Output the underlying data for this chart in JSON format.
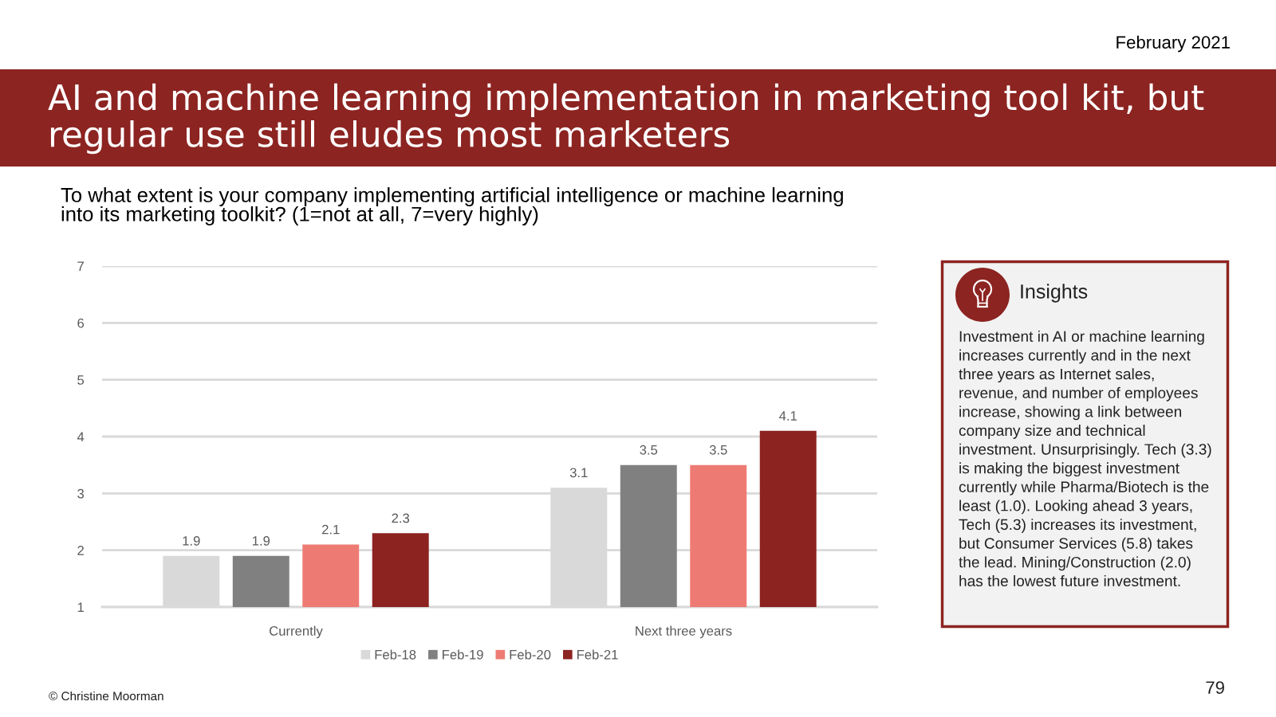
{
  "chart_data": [
    {
      "type": "bar",
      "title": "AI and machine learning implementation in marketing tool kit, but regular use still eludes most marketers",
      "subtitle": "To what extent is your company implementing artificial intelligence or machine learning into its marketing toolkit? (1=not at all, 7=very highly)",
      "categories": [
        "Currently",
        "Next three years"
      ],
      "series": [
        {
          "name": "Feb-18",
          "color": "#d9d9d9",
          "values": [
            1.9,
            3.1
          ]
        },
        {
          "name": "Feb-19",
          "color": "#808080",
          "values": [
            1.9,
            3.5
          ]
        },
        {
          "name": "Feb-20",
          "color": "#ee7b73",
          "values": [
            2.1,
            3.5
          ]
        },
        {
          "name": "Feb-21",
          "color": "#8c2320",
          "values": [
            2.3,
            4.1
          ]
        }
      ],
      "ylim": [
        1,
        7
      ],
      "yticks": [
        1,
        2,
        3,
        4,
        5,
        6,
        7
      ],
      "grid": "y",
      "legend": "bottom",
      "data_labels": true,
      "annotations": [
        "February 2021",
        "© Christine Moorman",
        "79"
      ]
    },
    {
      "type": "other",
      "title": "Insights",
      "annotations": [
        "Investment in AI or machine learning increases currently and in the next three years as Internet sales, revenue, and number of employees increase, showing a link between company size and technical investment. Unsurprisingly. Tech (3.3) is making the biggest investment currently while Pharma/Biotech is the least (1.0). Looking ahead 3 years, Tech (5.3) increases its investment, but Consumer Services (5.8) takes the lead. Mining/Construction (2.0) has the lowest future investment."
      ]
    }
  ]
}
